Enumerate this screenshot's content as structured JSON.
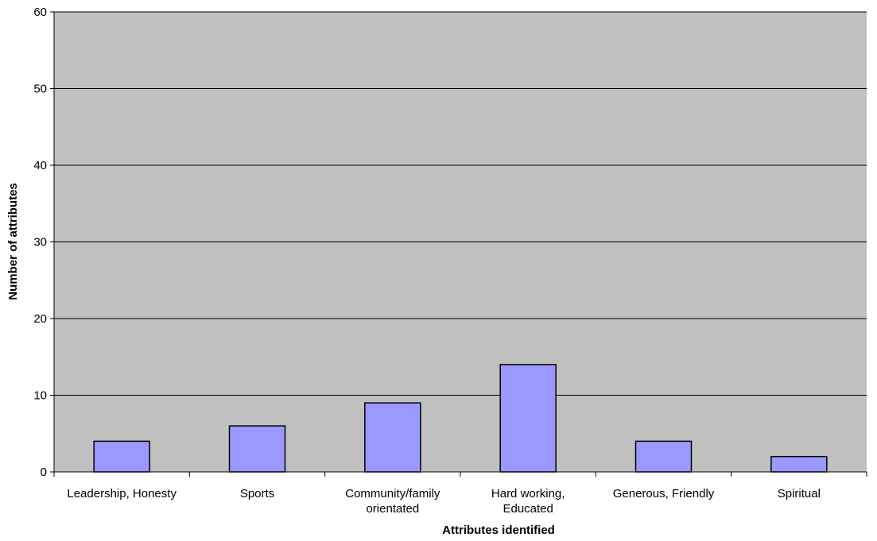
{
  "chart_data": {
    "type": "bar",
    "categories": [
      [
        "Leadership, Honesty"
      ],
      [
        "Sports"
      ],
      [
        "Community/family",
        "orientated"
      ],
      [
        "Hard working,",
        "Educated"
      ],
      [
        "Generous, Friendly"
      ],
      [
        "Spiritual"
      ]
    ],
    "values": [
      4,
      6,
      9,
      14,
      4,
      2
    ],
    "title": "",
    "xlabel": "Attributes identified",
    "ylabel": "Number of attributes",
    "ylim": [
      0,
      60
    ],
    "yticks": [
      0,
      10,
      20,
      30,
      40,
      50,
      60
    ],
    "grid": true,
    "legend": "none",
    "colors": {
      "plot_background": "#c0c0c0",
      "bar_fill": "#9999ff",
      "bar_stroke": "#000000",
      "gridline": "#000000"
    }
  }
}
